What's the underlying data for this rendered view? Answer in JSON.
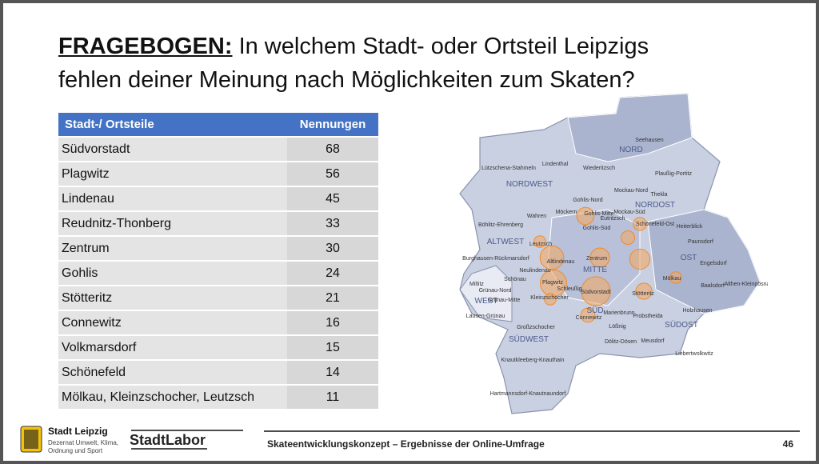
{
  "header": {
    "title_bold": "FRAGEBOGEN:",
    "title_line1": "In welchem Stadt- oder Ortsteil Leipzigs",
    "title_line2": "fehlen deiner Meinung nach Möglichkeiten zum Skaten?"
  },
  "table": {
    "columns": [
      "Stadt-/ Ortsteile",
      "Nennungen"
    ],
    "rows": [
      [
        "Südvorstadt",
        68
      ],
      [
        "Plagwitz",
        56
      ],
      [
        "Lindenau",
        45
      ],
      [
        "Reudnitz-Thonberg",
        33
      ],
      [
        "Zentrum",
        30
      ],
      [
        "Gohlis",
        24
      ],
      [
        "Stötteritz",
        21
      ],
      [
        "Connewitz",
        16
      ],
      [
        "Volkmarsdorf",
        15
      ],
      [
        "Schönefeld",
        14
      ],
      [
        "Mölkau, Kleinzschocher, Leutzsch",
        11
      ]
    ]
  },
  "map": {
    "labels": [
      "Seehausen",
      "NORD",
      "Lützschena-Stahmeln",
      "Lindenthal",
      "Wiederitzsch",
      "Plaußig-Portitz",
      "NORDWEST",
      "Mockau-Nord",
      "Thekla",
      "NORDOST",
      "Gohlis-Nord",
      "Möckern",
      "Wahren",
      "Gohlis-Mitte",
      "Mockau-Süd",
      "Eutritzsch",
      "Gohlis-Süd",
      "Schönefeld-Ost",
      "Heiterblick",
      "Böhlitz-Ehrenberg",
      "ALTWEST",
      "Leutzsch",
      "Paunsdorf",
      "Burghausen-Rückmarsdorf",
      "Altlindenau",
      "Zentrum",
      "OST",
      "Engelsdorf",
      "Neulindenau",
      "Schönau",
      "MITTE",
      "Mölkau",
      "Baalsdorf",
      "Althen-Kleinpösna",
      "Miltitz",
      "Grünau-Nord",
      "Plagwitz",
      "Schleußig",
      "Südvorstadt",
      "Stötteritz",
      "WEST",
      "Grünau-Mitte",
      "Kleinzschocher",
      "Lausen-Grünau",
      "SÜD",
      "Connewitz",
      "Marienbrunn",
      "Probstheida",
      "Holzhausen",
      "Großzschocher",
      "Lößnig",
      "SÜDOST",
      "SÜDWEST",
      "Dölitz-Dösen",
      "Meusdorf",
      "Liebertwolkwitz",
      "Knautkleeberg-Knauthain",
      "Hartmannsdorf-Knautnaundorf"
    ]
  },
  "footer": {
    "org": "Stadt Leipzig",
    "dept_line1": "Dezernat Umwelt, Klima,",
    "dept_line2": "Ordnung und Sport",
    "brand": "StadtLabor",
    "caption": "Skateentwicklungskonzept – Ergebnisse der Online-Umfrage",
    "page": "46"
  }
}
